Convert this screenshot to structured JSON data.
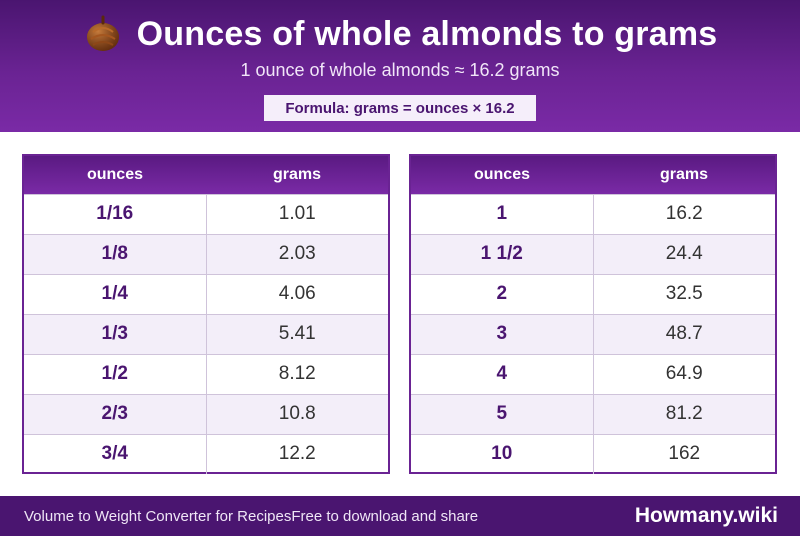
{
  "header": {
    "icon": "almond-icon",
    "title": "Ounces of whole almonds to grams",
    "subtitle": "1 ounce of whole almonds ≈ 16.2 grams",
    "formula": "Formula: grams = ounces × 16.2"
  },
  "tables": {
    "left": {
      "headers": [
        "ounces",
        "grams"
      ],
      "rows": [
        {
          "ounces": "1/16",
          "grams": "1.01"
        },
        {
          "ounces": "1/8",
          "grams": "2.03"
        },
        {
          "ounces": "1/4",
          "grams": "4.06"
        },
        {
          "ounces": "1/3",
          "grams": "5.41"
        },
        {
          "ounces": "1/2",
          "grams": "8.12"
        },
        {
          "ounces": "2/3",
          "grams": "10.8"
        },
        {
          "ounces": "3/4",
          "grams": "12.2"
        }
      ]
    },
    "right": {
      "headers": [
        "ounces",
        "grams"
      ],
      "rows": [
        {
          "ounces": "1",
          "grams": "16.2"
        },
        {
          "ounces": "1 1/2",
          "grams": "24.4"
        },
        {
          "ounces": "2",
          "grams": "32.5"
        },
        {
          "ounces": "3",
          "grams": "48.7"
        },
        {
          "ounces": "4",
          "grams": "64.9"
        },
        {
          "ounces": "5",
          "grams": "81.2"
        },
        {
          "ounces": "10",
          "grams": "162"
        }
      ]
    }
  },
  "footer": {
    "left_text": "Volume to Weight Converter for RecipesFree to download and share",
    "brand": "Howmany.wiki"
  },
  "colors": {
    "primary": "#4a1570",
    "accent": "#7a2aa6",
    "stripe": "#f3eef9"
  }
}
